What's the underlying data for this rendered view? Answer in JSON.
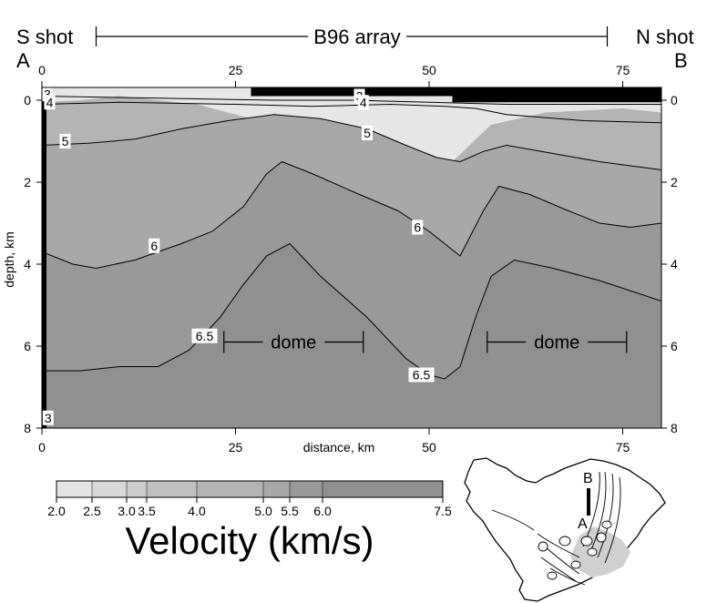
{
  "chart_data": {
    "type": "heatmap",
    "title": "",
    "xlabel": "distance, km",
    "ylabel": "depth, km",
    "xlim": [
      0,
      80
    ],
    "ylim": [
      8,
      0
    ],
    "x_ticks": [
      "0",
      "25",
      "50",
      "75"
    ],
    "x_tick_values": [
      0,
      25,
      50,
      75
    ],
    "y_ticks": [
      "0",
      "2",
      "4",
      "6",
      "8"
    ],
    "y_tick_values": [
      0,
      2,
      4,
      6,
      8
    ],
    "end_labels": {
      "left": "A",
      "right": "B"
    },
    "top_labels": {
      "left": "S shot",
      "center": "B96 array",
      "right": "N shot"
    },
    "bands": [
      {
        "range": [
          0,
          4
        ],
        "color": "#b4b4b4",
        "points": [
          [
            0,
            0.05
          ],
          [
            5,
            0
          ],
          [
            10,
            -0.1
          ],
          [
            20,
            0.1
          ],
          [
            30,
            0.6
          ],
          [
            40,
            0.9
          ],
          [
            50,
            1.6
          ],
          [
            53,
            1.5
          ],
          [
            58,
            0.6
          ],
          [
            65,
            0.3
          ],
          [
            75,
            0.2
          ],
          [
            80,
            0.3
          ]
        ]
      },
      {
        "range": [
          5,
          6
        ],
        "color": "#a8a8a8",
        "points": [
          [
            0,
            1.1
          ],
          [
            6,
            1.05
          ],
          [
            12,
            0.95
          ],
          [
            18,
            0.7
          ],
          [
            24,
            0.5
          ],
          [
            30,
            0.35
          ],
          [
            36,
            0.45
          ],
          [
            42,
            0.7
          ],
          [
            47,
            1.1
          ],
          [
            51,
            1.4
          ],
          [
            54,
            1.5
          ],
          [
            57,
            1.25
          ],
          [
            60,
            1.1
          ],
          [
            66,
            1.3
          ],
          [
            72,
            1.5
          ],
          [
            80,
            1.7
          ]
        ]
      },
      {
        "range": [
          6,
          6.5
        ],
        "color": "#999999",
        "points": [
          [
            0,
            3.7
          ],
          [
            4,
            4.0
          ],
          [
            7,
            4.1
          ],
          [
            12,
            3.9
          ],
          [
            18,
            3.5
          ],
          [
            22,
            3.2
          ],
          [
            26,
            2.6
          ],
          [
            29,
            1.8
          ],
          [
            31,
            1.5
          ],
          [
            35,
            1.8
          ],
          [
            41,
            2.3
          ],
          [
            46,
            2.7
          ],
          [
            50,
            3.2
          ],
          [
            54,
            3.8
          ],
          [
            57,
            2.7
          ],
          [
            59,
            2.1
          ],
          [
            63,
            2.3
          ],
          [
            68,
            2.7
          ],
          [
            72,
            3.0
          ],
          [
            76,
            3.1
          ],
          [
            80,
            3.0
          ]
        ]
      },
      {
        "range": [
          6.5,
          7.5
        ],
        "color": "#909090",
        "points": [
          [
            0,
            6.6
          ],
          [
            5,
            6.6
          ],
          [
            10,
            6.5
          ],
          [
            15,
            6.5
          ],
          [
            19,
            6.1
          ],
          [
            23,
            5.3
          ],
          [
            26,
            4.5
          ],
          [
            29,
            3.8
          ],
          [
            32,
            3.5
          ],
          [
            36,
            4.3
          ],
          [
            42,
            5.3
          ],
          [
            47,
            6.3
          ],
          [
            50,
            6.7
          ],
          [
            52,
            6.8
          ],
          [
            54,
            6.5
          ],
          [
            56,
            5.3
          ],
          [
            58,
            4.3
          ],
          [
            61,
            3.9
          ],
          [
            66,
            4.1
          ],
          [
            72,
            4.4
          ],
          [
            80,
            4.9
          ]
        ]
      }
    ],
    "contours": [
      {
        "label": "3",
        "points": [
          [
            0,
            -0.1
          ],
          [
            15,
            -0.05
          ],
          [
            30,
            0.0
          ],
          [
            40,
            0.0
          ],
          [
            50,
            0.05
          ],
          [
            60,
            0.1
          ],
          [
            80,
            0.1
          ]
        ]
      },
      {
        "label": "4",
        "points": [
          [
            0,
            0.1
          ],
          [
            10,
            0.05
          ],
          [
            25,
            0.1
          ],
          [
            35,
            0.15
          ],
          [
            45,
            0.1
          ],
          [
            52,
            0.15
          ],
          [
            56,
            0.2
          ],
          [
            60,
            0.35
          ],
          [
            70,
            0.5
          ],
          [
            80,
            0.55
          ]
        ]
      },
      {
        "label": "5",
        "points": [
          [
            0,
            1.1
          ],
          [
            6,
            1.05
          ],
          [
            12,
            0.95
          ],
          [
            18,
            0.7
          ],
          [
            24,
            0.5
          ],
          [
            30,
            0.35
          ],
          [
            36,
            0.45
          ],
          [
            42,
            0.7
          ],
          [
            47,
            1.1
          ],
          [
            51,
            1.4
          ],
          [
            54,
            1.5
          ],
          [
            57,
            1.25
          ],
          [
            60,
            1.1
          ],
          [
            66,
            1.3
          ],
          [
            72,
            1.5
          ],
          [
            80,
            1.7
          ]
        ]
      },
      {
        "label": "6",
        "points": [
          [
            0,
            3.7
          ],
          [
            4,
            4.0
          ],
          [
            7,
            4.1
          ],
          [
            12,
            3.9
          ],
          [
            18,
            3.5
          ],
          [
            22,
            3.2
          ],
          [
            26,
            2.6
          ],
          [
            29,
            1.8
          ],
          [
            31,
            1.5
          ],
          [
            35,
            1.8
          ],
          [
            41,
            2.3
          ],
          [
            46,
            2.7
          ],
          [
            50,
            3.2
          ],
          [
            54,
            3.8
          ],
          [
            57,
            2.7
          ],
          [
            59,
            2.1
          ],
          [
            63,
            2.3
          ],
          [
            68,
            2.7
          ],
          [
            72,
            3.0
          ],
          [
            76,
            3.1
          ],
          [
            80,
            3.0
          ]
        ]
      },
      {
        "label": "6.5",
        "points": [
          [
            0,
            6.6
          ],
          [
            5,
            6.6
          ],
          [
            10,
            6.5
          ],
          [
            15,
            6.5
          ],
          [
            19,
            6.1
          ],
          [
            23,
            5.3
          ],
          [
            26,
            4.5
          ],
          [
            29,
            3.8
          ],
          [
            32,
            3.5
          ],
          [
            36,
            4.3
          ],
          [
            42,
            5.3
          ],
          [
            47,
            6.3
          ],
          [
            50,
            6.7
          ],
          [
            52,
            6.8
          ],
          [
            54,
            6.5
          ],
          [
            56,
            5.3
          ],
          [
            58,
            4.3
          ],
          [
            61,
            3.9
          ],
          [
            66,
            4.1
          ],
          [
            72,
            4.4
          ],
          [
            80,
            4.9
          ]
        ]
      }
    ],
    "contour_labels": [
      {
        "text": "3",
        "x": 0.7,
        "y": -0.15
      },
      {
        "text": "4",
        "x": 1.0,
        "y": 0.05
      },
      {
        "text": "3",
        "x": 41.0,
        "y": -0.1
      },
      {
        "text": "4",
        "x": 41.5,
        "y": 0.05
      },
      {
        "text": "5",
        "x": 3.0,
        "y": 1.0
      },
      {
        "text": "5",
        "x": 42.0,
        "y": 0.8
      },
      {
        "text": "6",
        "x": 14.5,
        "y": 3.55
      },
      {
        "text": "6",
        "x": 48.5,
        "y": 3.1
      },
      {
        "text": "6.5",
        "x": 21.0,
        "y": 5.75
      },
      {
        "text": "6.5",
        "x": 49.0,
        "y": 6.7
      },
      {
        "text": "3",
        "x": 0.8,
        "y": 7.75
      }
    ],
    "annotations": [
      {
        "text": "dome",
        "x_range": [
          23.5,
          41.5
        ],
        "y": 5.9
      },
      {
        "text": "dome",
        "x_range": [
          57.5,
          75.5
        ],
        "y": 5.9
      }
    ],
    "array_bar_x": [
      7,
      73
    ],
    "colorbar": {
      "title": "Velocity (km/s)",
      "ticks": [
        "2.0",
        "2.5",
        "3.0",
        "3.5",
        "4.0",
        "5.0",
        "5.5",
        "6.0",
        "7.5"
      ],
      "colors": [
        "#f0f0f0",
        "#e4e4e4",
        "#d8d8d8",
        "#cccccc",
        "#c0c0c0",
        "#b4b4b4",
        "#a8a8a8",
        "#999999",
        "#909090"
      ]
    }
  },
  "inset_map": {
    "labels": {
      "a": "A",
      "b": "B"
    }
  }
}
